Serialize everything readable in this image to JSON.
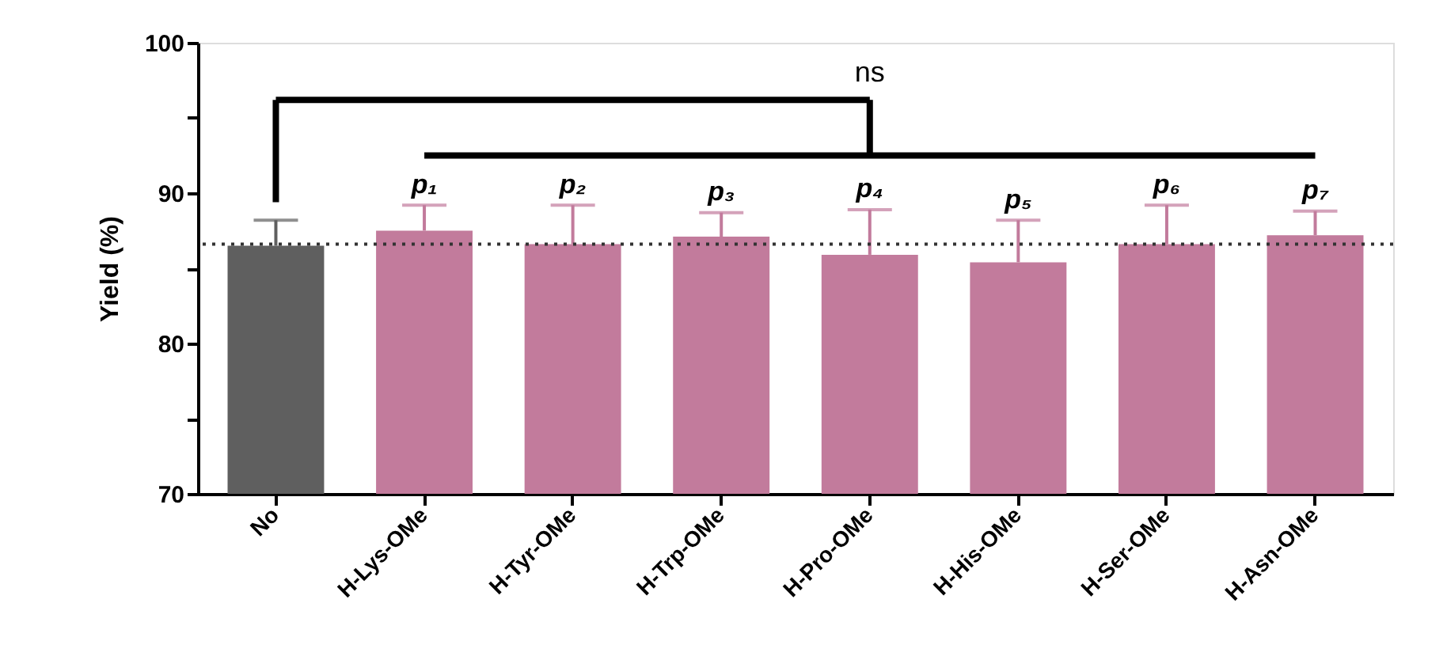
{
  "chart_data": {
    "type": "bar",
    "ylabel": "Yield (%)",
    "categories": [
      "No",
      "H-Lys-OMe",
      "H-Tyr-OMe",
      "H-Trp-OMe",
      "H-Pro-OMe",
      "H-His-OMe",
      "H-Ser-OMe",
      "H-Asn-OMe"
    ],
    "values": [
      86.5,
      87.5,
      86.6,
      87.1,
      85.9,
      85.4,
      86.6,
      87.2
    ],
    "colors": [
      "#5f5f5f",
      "#c27b9c",
      "#c27b9c",
      "#c27b9c",
      "#c27b9c",
      "#c27b9c",
      "#c27b9c",
      "#c27b9c"
    ],
    "errors": [
      [
        86.5,
        88.2
      ],
      [
        87.5,
        89.2
      ],
      [
        86.6,
        89.2
      ],
      [
        87.1,
        88.7
      ],
      [
        85.9,
        88.9
      ],
      [
        85.4,
        88.2
      ],
      [
        86.6,
        89.2
      ],
      [
        87.2,
        88.8
      ]
    ],
    "ylim": [
      70,
      100
    ],
    "yticks": [
      70,
      {
        "value": 75,
        "label": null
      },
      80,
      {
        "value": 85,
        "label": null
      },
      90,
      {
        "value": 95,
        "label": null
      },
      100
    ],
    "ref_lines": [
      {
        "axis": "y",
        "value": 86.6,
        "line_style": "dotted",
        "color": "#333333"
      }
    ],
    "annotations": [
      "ns",
      "p₁",
      "p₂",
      "p₃",
      "p₄",
      "p₅",
      "p₆",
      "p₇"
    ],
    "grid": false
  }
}
